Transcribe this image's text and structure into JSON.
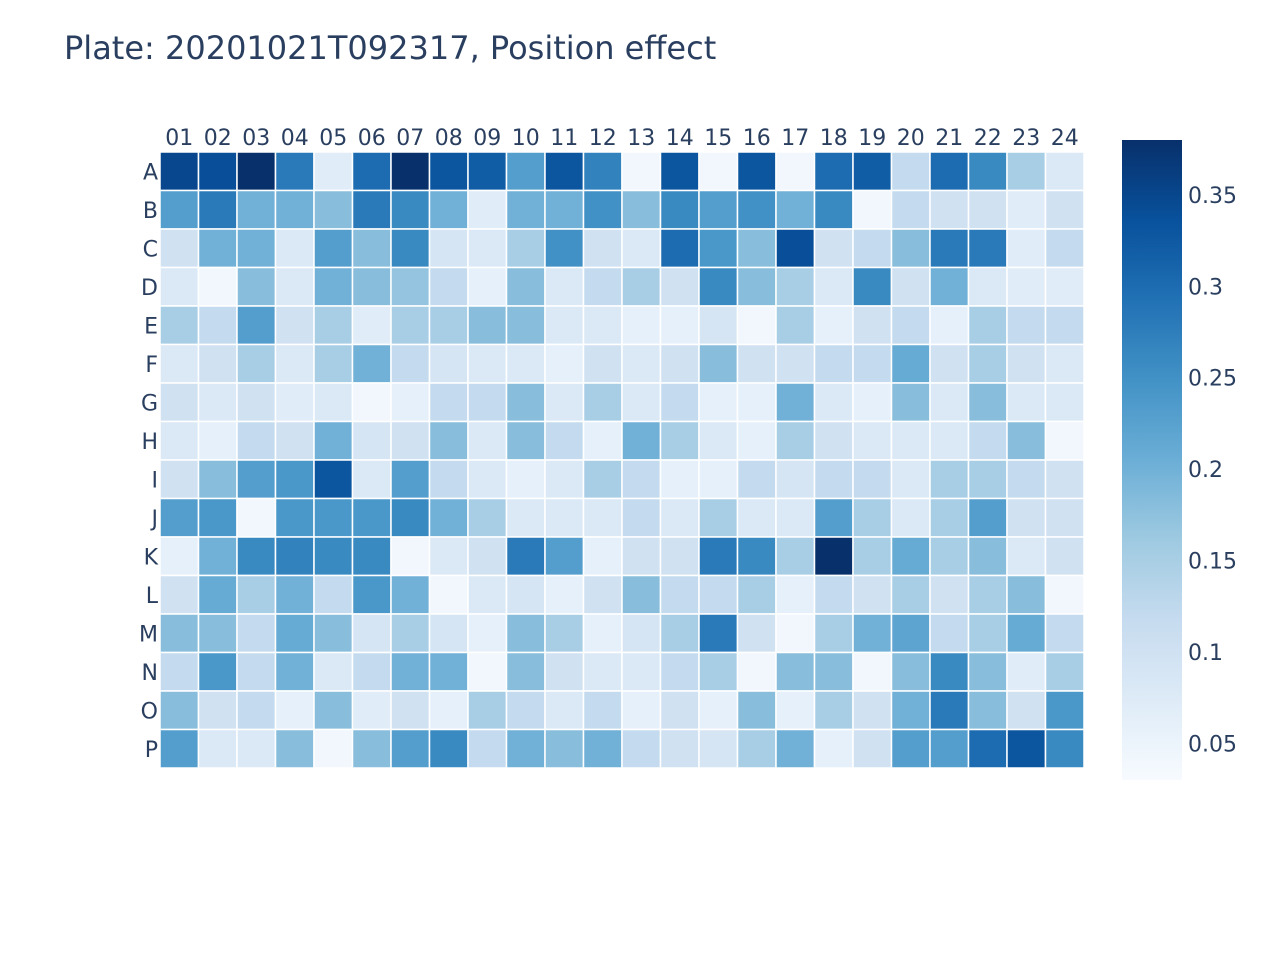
{
  "title": "Plate: 20201021T092317, Position effect",
  "chart_data": {
    "type": "heatmap",
    "title": "Plate: 20201021T092317, Position effect",
    "colorscale": "Blues",
    "zmin": 0.03,
    "zmax": 0.38,
    "x": [
      "01",
      "02",
      "03",
      "04",
      "05",
      "06",
      "07",
      "08",
      "09",
      "10",
      "11",
      "12",
      "13",
      "14",
      "15",
      "16",
      "17",
      "18",
      "19",
      "20",
      "21",
      "22",
      "23",
      "24"
    ],
    "y": [
      "A",
      "B",
      "C",
      "D",
      "E",
      "F",
      "G",
      "H",
      "I",
      "J",
      "K",
      "L",
      "M",
      "N",
      "O",
      "P"
    ],
    "colorbar": {
      "ticks": [
        0.35,
        0.3,
        0.25,
        0.2,
        0.15,
        0.1,
        0.05
      ],
      "tick_labels": [
        "0.35",
        "0.3",
        "0.25",
        "0.2",
        "0.15",
        "0.1",
        "0.05"
      ]
    },
    "z": [
      [
        0.35,
        0.34,
        0.38,
        0.28,
        0.07,
        0.3,
        0.38,
        0.33,
        0.32,
        0.23,
        0.33,
        0.27,
        0.04,
        0.33,
        0.04,
        0.33,
        0.04,
        0.3,
        0.32,
        0.12,
        0.3,
        0.26,
        0.15,
        0.08
      ],
      [
        0.23,
        0.28,
        0.2,
        0.2,
        0.18,
        0.28,
        0.26,
        0.2,
        0.07,
        0.2,
        0.2,
        0.25,
        0.18,
        0.26,
        0.23,
        0.25,
        0.2,
        0.26,
        0.04,
        0.12,
        0.1,
        0.1,
        0.07,
        0.1
      ],
      [
        0.1,
        0.2,
        0.2,
        0.08,
        0.23,
        0.18,
        0.26,
        0.09,
        0.08,
        0.15,
        0.25,
        0.1,
        0.08,
        0.3,
        0.24,
        0.18,
        0.34,
        0.1,
        0.12,
        0.18,
        0.28,
        0.28,
        0.07,
        0.12
      ],
      [
        0.08,
        0.04,
        0.18,
        0.08,
        0.2,
        0.18,
        0.17,
        0.12,
        0.06,
        0.18,
        0.08,
        0.12,
        0.15,
        0.1,
        0.26,
        0.18,
        0.15,
        0.08,
        0.26,
        0.1,
        0.2,
        0.08,
        0.07,
        0.07
      ],
      [
        0.15,
        0.12,
        0.23,
        0.1,
        0.15,
        0.07,
        0.15,
        0.15,
        0.18,
        0.18,
        0.08,
        0.08,
        0.06,
        0.06,
        0.09,
        0.04,
        0.15,
        0.06,
        0.1,
        0.12,
        0.06,
        0.15,
        0.12,
        0.12
      ],
      [
        0.08,
        0.1,
        0.15,
        0.08,
        0.15,
        0.2,
        0.12,
        0.09,
        0.08,
        0.08,
        0.06,
        0.1,
        0.08,
        0.1,
        0.18,
        0.1,
        0.1,
        0.12,
        0.12,
        0.21,
        0.1,
        0.15,
        0.1,
        0.08
      ],
      [
        0.1,
        0.08,
        0.1,
        0.07,
        0.08,
        0.04,
        0.06,
        0.12,
        0.12,
        0.18,
        0.08,
        0.15,
        0.08,
        0.12,
        0.06,
        0.06,
        0.2,
        0.08,
        0.06,
        0.18,
        0.08,
        0.18,
        0.08,
        0.08
      ],
      [
        0.08,
        0.06,
        0.12,
        0.1,
        0.2,
        0.09,
        0.1,
        0.18,
        0.08,
        0.18,
        0.12,
        0.06,
        0.2,
        0.15,
        0.08,
        0.06,
        0.15,
        0.1,
        0.08,
        0.08,
        0.08,
        0.12,
        0.18,
        0.04
      ],
      [
        0.1,
        0.18,
        0.23,
        0.24,
        0.33,
        0.08,
        0.23,
        0.12,
        0.08,
        0.06,
        0.08,
        0.15,
        0.12,
        0.06,
        0.06,
        0.12,
        0.09,
        0.12,
        0.12,
        0.08,
        0.15,
        0.15,
        0.12,
        0.1
      ],
      [
        0.23,
        0.24,
        0.04,
        0.24,
        0.24,
        0.24,
        0.26,
        0.2,
        0.15,
        0.08,
        0.08,
        0.08,
        0.12,
        0.08,
        0.15,
        0.08,
        0.08,
        0.23,
        0.15,
        0.08,
        0.15,
        0.23,
        0.1,
        0.1
      ],
      [
        0.06,
        0.2,
        0.26,
        0.27,
        0.26,
        0.26,
        0.04,
        0.08,
        0.1,
        0.28,
        0.23,
        0.06,
        0.1,
        0.1,
        0.28,
        0.26,
        0.15,
        0.38,
        0.15,
        0.21,
        0.15,
        0.18,
        0.08,
        0.1
      ],
      [
        0.1,
        0.21,
        0.15,
        0.2,
        0.12,
        0.24,
        0.2,
        0.04,
        0.08,
        0.09,
        0.06,
        0.1,
        0.18,
        0.12,
        0.12,
        0.15,
        0.06,
        0.12,
        0.1,
        0.15,
        0.1,
        0.15,
        0.18,
        0.04
      ],
      [
        0.18,
        0.18,
        0.12,
        0.21,
        0.18,
        0.09,
        0.15,
        0.09,
        0.06,
        0.18,
        0.15,
        0.06,
        0.09,
        0.15,
        0.28,
        0.1,
        0.04,
        0.15,
        0.2,
        0.22,
        0.12,
        0.15,
        0.21,
        0.12
      ],
      [
        0.12,
        0.24,
        0.12,
        0.2,
        0.08,
        0.12,
        0.2,
        0.2,
        0.04,
        0.18,
        0.1,
        0.08,
        0.08,
        0.12,
        0.15,
        0.04,
        0.18,
        0.18,
        0.04,
        0.18,
        0.26,
        0.18,
        0.07,
        0.15
      ],
      [
        0.18,
        0.1,
        0.12,
        0.06,
        0.18,
        0.07,
        0.1,
        0.06,
        0.15,
        0.12,
        0.08,
        0.12,
        0.06,
        0.1,
        0.06,
        0.18,
        0.06,
        0.15,
        0.1,
        0.2,
        0.28,
        0.18,
        0.1,
        0.24
      ],
      [
        0.23,
        0.08,
        0.08,
        0.18,
        0.04,
        0.18,
        0.23,
        0.26,
        0.12,
        0.2,
        0.18,
        0.2,
        0.12,
        0.1,
        0.09,
        0.15,
        0.2,
        0.06,
        0.1,
        0.23,
        0.23,
        0.3,
        0.33,
        0.26
      ]
    ]
  }
}
